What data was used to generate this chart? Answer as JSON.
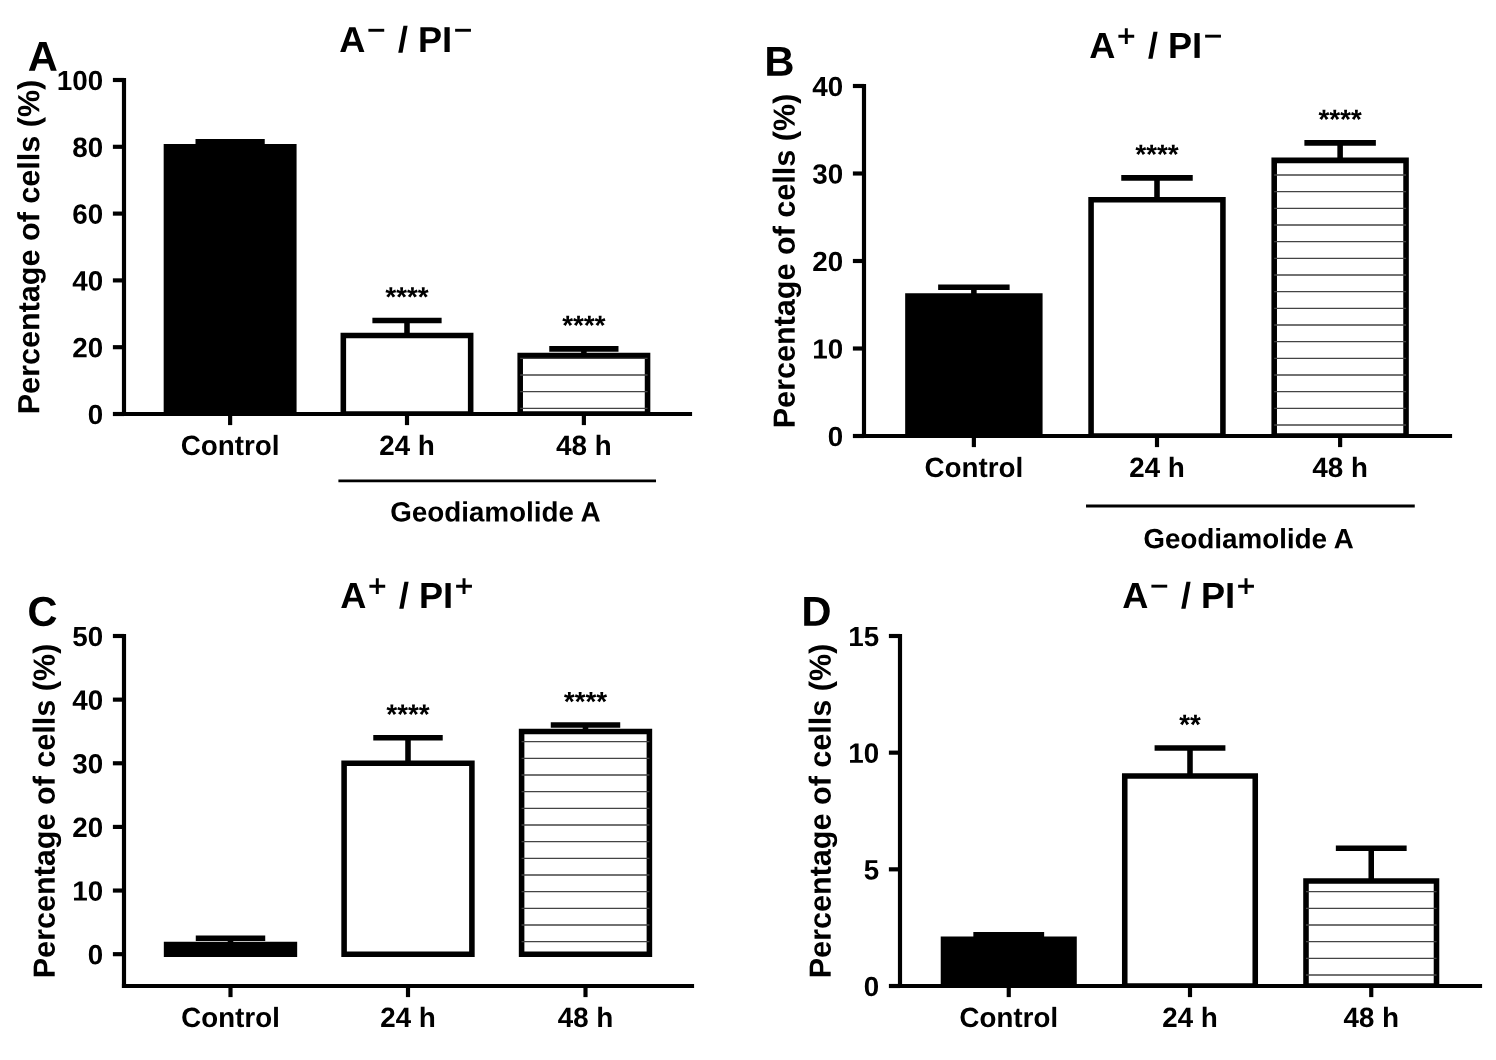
{
  "chart_data": [
    {
      "type": "bar",
      "title": "A$^{−}$ / PI$^{−}$",
      "ylabel": "Percentage of cells (%)",
      "categories": [
        "Control",
        "24 h",
        "48 h"
      ],
      "values": [
        80,
        23.5,
        17.5
      ],
      "errors": [
        [
          80,
          81.5
        ],
        [
          23.5,
          28
        ],
        [
          17.5,
          19.5
        ]
      ],
      "colors": [
        "#000000",
        "#ffffff",
        "#ffffff"
      ],
      "ylim": [
        0,
        100
      ],
      "yticks": [
        0,
        20,
        40,
        60,
        80,
        100
      ],
      "grid": false,
      "legend": false,
      "annotations": [
        "A",
        "Geodiamolide A",
        {
          "text": "****",
          "x": "24 h",
          "y": 28
        },
        {
          "text": "****",
          "x": "48 h",
          "y": 19.5
        }
      ]
    },
    {
      "type": "bar",
      "title": "A$^{+}$ / PI$^{−}$",
      "ylabel": "Percentage of cells (%)",
      "categories": [
        "Control",
        "24 h",
        "48 h"
      ],
      "values": [
        16,
        27,
        31.5
      ],
      "errors": [
        [
          16,
          17
        ],
        [
          27,
          29.5
        ],
        [
          31.5,
          33.5
        ]
      ],
      "colors": [
        "#000000",
        "#ffffff",
        "#ffffff"
      ],
      "ylim": [
        0,
        40
      ],
      "yticks": [
        0,
        10,
        20,
        30,
        40
      ],
      "grid": false,
      "legend": false,
      "annotations": [
        "B",
        "Geodiamolide A",
        {
          "text": "****",
          "x": "24 h",
          "y": 29.5
        },
        {
          "text": "****",
          "x": "48 h",
          "y": 33.5
        }
      ]
    },
    {
      "type": "bar",
      "title": "A$^{+}$ / PI$^{+}$",
      "ylabel": "Percentage of cells (%)",
      "categories": [
        "Control",
        "24 h",
        "48 h"
      ],
      "values": [
        1.5,
        30,
        35
      ],
      "errors": [
        [
          1.5,
          2.5
        ],
        [
          30,
          34
        ],
        [
          35,
          36
        ]
      ],
      "colors": [
        "#000000",
        "#ffffff",
        "#ffffff"
      ],
      "ylim": [
        -5,
        50
      ],
      "yticks": [
        0,
        10,
        20,
        30,
        40,
        50
      ],
      "grid": false,
      "legend": false,
      "annotations": [
        "C",
        {
          "text": "****",
          "x": "24 h",
          "y": 34
        },
        {
          "text": "****",
          "x": "48 h",
          "y": 36
        }
      ]
    },
    {
      "type": "bar",
      "title": "A$^{−}$ / PI$^{+}$",
      "ylabel": "Percentage of cells (%)",
      "categories": [
        "Control",
        "24 h",
        "48 h"
      ],
      "values": [
        2,
        9,
        4.5
      ],
      "errors": [
        [
          2,
          2.2
        ],
        [
          9,
          10.2
        ],
        [
          4.5,
          5.9
        ]
      ],
      "colors": [
        "#000000",
        "#ffffff",
        "#ffffff"
      ],
      "ylim": [
        0,
        15
      ],
      "yticks": [
        0,
        5,
        10,
        15
      ],
      "grid": false,
      "legend": false,
      "annotations": [
        "D",
        {
          "text": "**",
          "x": "24 h",
          "y": 10.2
        }
      ]
    }
  ]
}
